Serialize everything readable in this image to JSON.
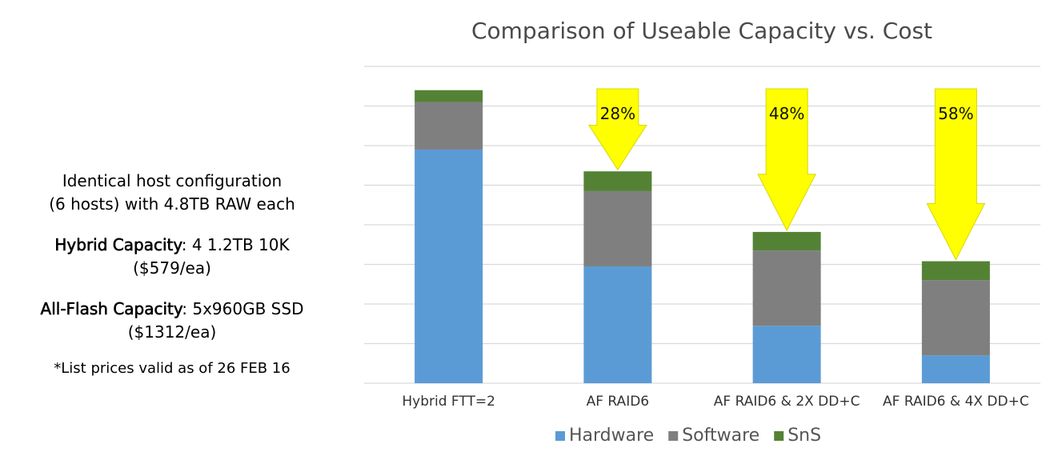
{
  "info": {
    "line1": "Identical host configuration",
    "line2": "(6 hosts) with 4.8TB RAW each",
    "hybrid_label": "Hybrid Capacity",
    "hybrid_value": ": 4 1.2TB 10K",
    "hybrid_price": "($579/ea)",
    "flash_label": "All-Flash Capacity",
    "flash_value": ": 5x960GB SSD",
    "flash_price": "($1312/ea)",
    "note": "*List prices valid as of 26 FEB 16"
  },
  "chart_data": {
    "type": "bar",
    "stacked": true,
    "title": "Comparison of Useable Capacity vs. Cost",
    "categories": [
      "Hybrid FTT=2",
      "AF RAID6",
      "AF RAID6 & 2X DD+C",
      "AF RAID6 & 4X DD+C"
    ],
    "series": [
      {
        "name": "Hardware",
        "color": "#5b9bd5",
        "values": [
          5.9,
          2.95,
          1.45,
          0.7
        ]
      },
      {
        "name": "Software",
        "color": "#7f7f7f",
        "values": [
          1.2,
          1.9,
          1.9,
          1.9
        ]
      },
      {
        "name": "SnS",
        "color": "#548235",
        "values": [
          0.3,
          0.5,
          0.47,
          0.48
        ]
      }
    ],
    "ylim": [
      0,
      8
    ],
    "grid": true,
    "legend": "bottom",
    "annotations": [
      {
        "category": "AF RAID6",
        "label": "28%"
      },
      {
        "category": "AF RAID6 & 2X DD+C",
        "label": "48%"
      },
      {
        "category": "AF RAID6 & 4X DD+C",
        "label": "58%"
      }
    ],
    "arrow_color": "#ffff00"
  }
}
